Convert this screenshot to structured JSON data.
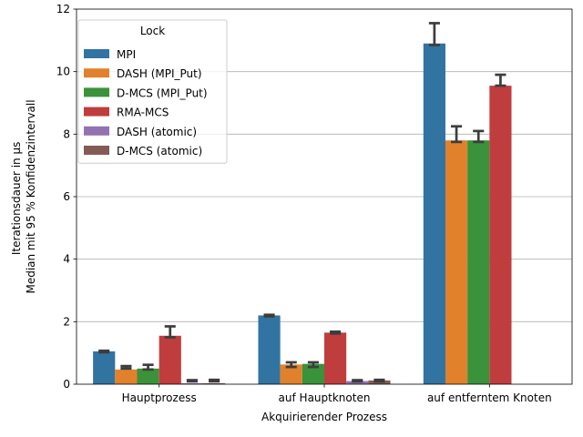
{
  "chart_data": {
    "type": "bar",
    "xlabel": "Akquirierender Prozess",
    "ylabel_lines": [
      "Iterationsdauer in µs",
      "Median mit 95 % Konfidenzintervall"
    ],
    "categories": [
      "Hauptprozess",
      "auf Hauptknoten",
      "auf entferntem Knoten"
    ],
    "ylim": [
      0,
      12
    ],
    "yticks": [
      0,
      2,
      4,
      6,
      8,
      10,
      12
    ],
    "grid": "horizontal",
    "legend": {
      "title": "Lock",
      "position": "top-left"
    },
    "series": [
      {
        "name": "MPI",
        "color": "#3274a1",
        "values": [
          1.05,
          2.2,
          10.9
        ],
        "ci": [
          [
            1.02,
            1.07
          ],
          [
            2.17,
            2.22
          ],
          [
            10.85,
            11.55
          ]
        ]
      },
      {
        "name": "DASH (MPI_Put)",
        "color": "#e1812c",
        "values": [
          0.47,
          0.63,
          7.8
        ],
        "ci": [
          [
            0.5,
            0.58
          ],
          [
            0.55,
            0.7
          ],
          [
            7.75,
            8.25
          ]
        ]
      },
      {
        "name": "D-MCS (MPI_Put)",
        "color": "#3a923a",
        "values": [
          0.5,
          0.65,
          7.8
        ],
        "ci": [
          [
            0.47,
            0.62
          ],
          [
            0.55,
            0.7
          ],
          [
            7.75,
            8.1
          ]
        ]
      },
      {
        "name": "RMA-MCS",
        "color": "#c03d3e",
        "values": [
          1.55,
          1.65,
          9.55
        ],
        "ci": [
          [
            1.5,
            1.85
          ],
          [
            1.62,
            1.68
          ],
          [
            9.55,
            9.9
          ]
        ]
      },
      {
        "name": "DASH (atomic)",
        "color": "#9372b2",
        "values": [
          0.03,
          0.1,
          null
        ],
        "ci": [
          [
            0.09,
            0.13
          ],
          [
            0.09,
            0.13
          ],
          null
        ]
      },
      {
        "name": "D-MCS (atomic)",
        "color": "#845b53",
        "values": [
          0.03,
          0.12,
          null
        ],
        "ci": [
          [
            0.09,
            0.14
          ],
          [
            0.09,
            0.14
          ],
          null
        ]
      }
    ]
  }
}
